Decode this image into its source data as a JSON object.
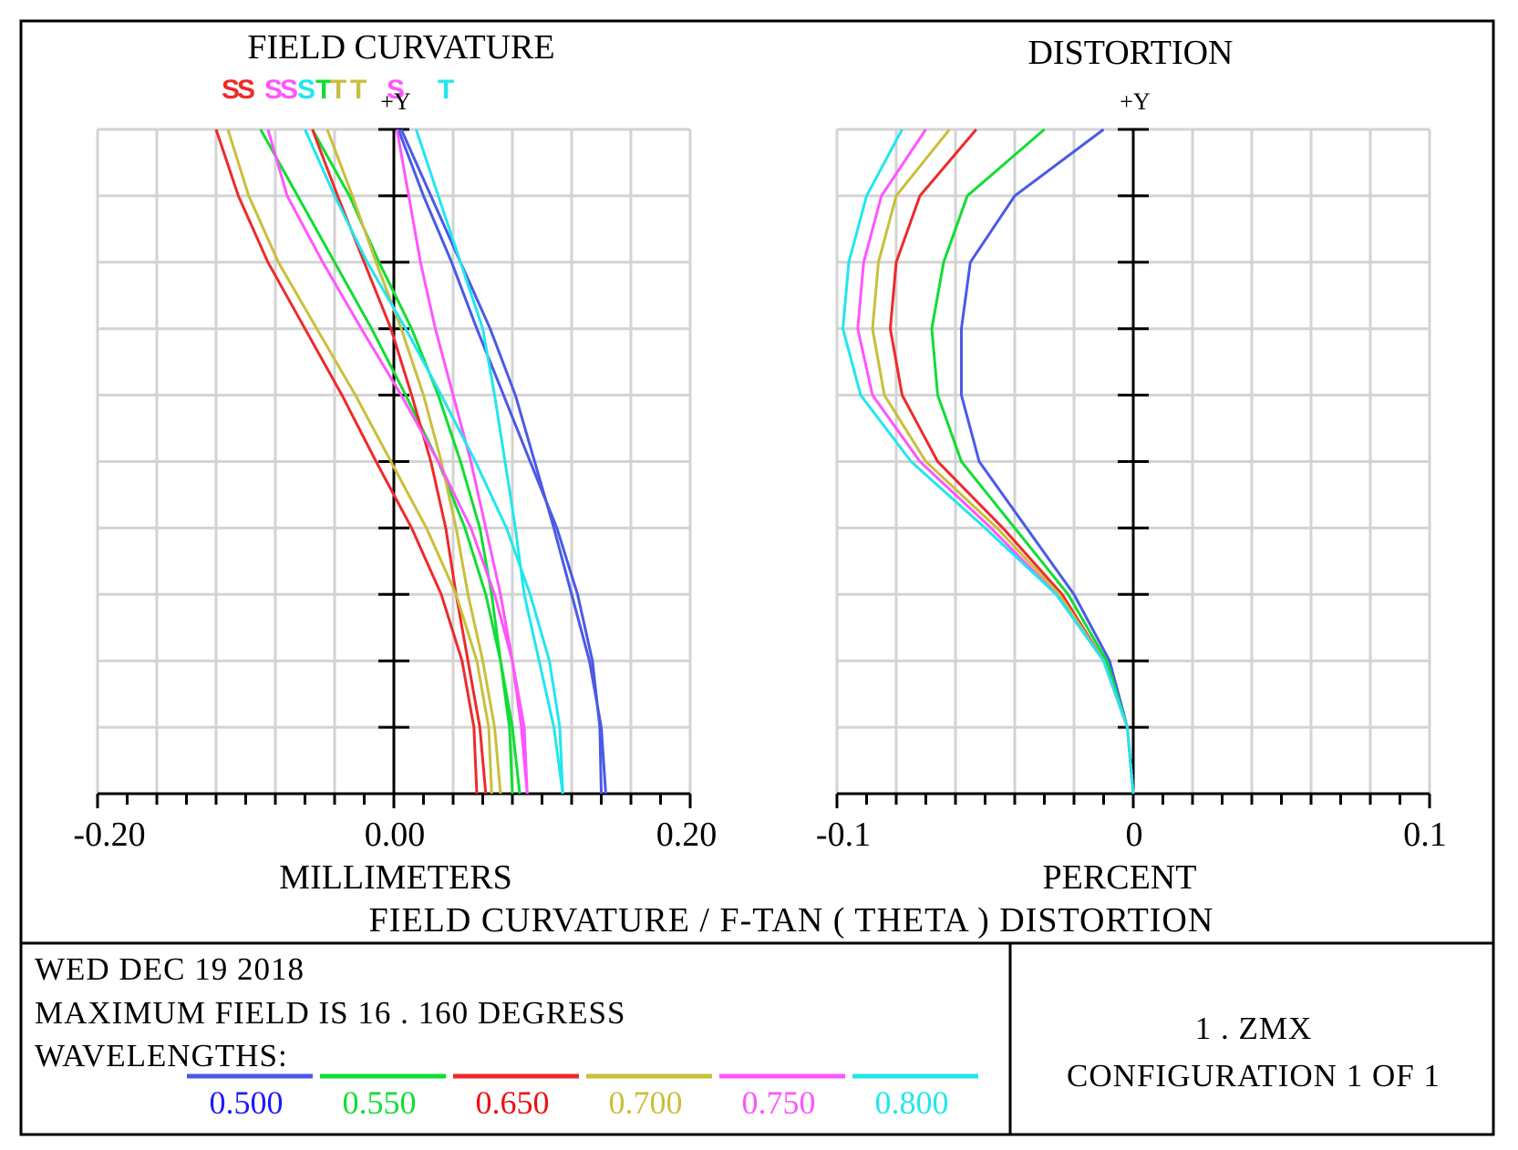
{
  "colors": {
    "w500": "#4a5ae6",
    "w550": "#11dd33",
    "w650": "#ee2a2a",
    "w700": "#c9bf3c",
    "w750": "#ff55ff",
    "w800": "#22e6ee",
    "grid": "#d3d3d3",
    "axis": "#000000"
  },
  "chart_data": [
    {
      "type": "line",
      "title": "FIELD CURVATURE",
      "legend_glyphs": [
        "S",
        "S",
        "S",
        "S",
        "S",
        "T",
        "T",
        "T",
        "S",
        "T"
      ],
      "axis_marker": "+Y",
      "xlabel": "MILLIMETERS",
      "xlim": [
        -0.2,
        0.2
      ],
      "ylim": [
        0,
        1
      ],
      "x_tick_labels": [
        "-0.20",
        "0.00",
        "0.20"
      ],
      "series": [
        {
          "name": "0.500 S",
          "color_key": "w500",
          "y": [
            0,
            0.1,
            0.2,
            0.3,
            0.4,
            0.5,
            0.6,
            0.7,
            0.8,
            0.9,
            1.0
          ],
          "x": [
            0.14,
            0.139,
            0.134,
            0.124,
            0.11,
            0.092,
            0.074,
            0.056,
            0.039,
            0.02,
            0.003
          ]
        },
        {
          "name": "0.500 T",
          "color_key": "w500",
          "y": [
            0,
            0.1,
            0.2,
            0.3,
            0.4,
            0.5,
            0.6,
            0.7,
            0.8,
            0.9,
            1.0
          ],
          "x": [
            0.143,
            0.14,
            0.132,
            0.12,
            0.108,
            0.095,
            0.082,
            0.065,
            0.045,
            0.025,
            0.005
          ]
        },
        {
          "name": "0.550 S",
          "color_key": "w550",
          "y": [
            0,
            0.1,
            0.2,
            0.3,
            0.4,
            0.5,
            0.6,
            0.7,
            0.8,
            0.9,
            1.0
          ],
          "x": [
            0.08,
            0.078,
            0.072,
            0.062,
            0.048,
            0.03,
            0.008,
            -0.015,
            -0.04,
            -0.065,
            -0.09
          ]
        },
        {
          "name": "0.550 T",
          "color_key": "w550",
          "y": [
            0,
            0.1,
            0.2,
            0.3,
            0.4,
            0.5,
            0.6,
            0.7,
            0.8,
            0.9,
            1.0
          ],
          "x": [
            0.085,
            0.08,
            0.072,
            0.066,
            0.058,
            0.045,
            0.03,
            0.012,
            -0.01,
            -0.03,
            -0.055
          ]
        },
        {
          "name": "0.650 S",
          "color_key": "w650",
          "y": [
            0,
            0.1,
            0.2,
            0.3,
            0.4,
            0.5,
            0.6,
            0.7,
            0.8,
            0.9,
            1.0
          ],
          "x": [
            0.056,
            0.054,
            0.046,
            0.032,
            0.012,
            -0.012,
            -0.035,
            -0.06,
            -0.085,
            -0.105,
            -0.12
          ]
        },
        {
          "name": "0.650 T",
          "color_key": "w650",
          "y": [
            0,
            0.1,
            0.2,
            0.3,
            0.4,
            0.5,
            0.6,
            0.7,
            0.8,
            0.9,
            1.0
          ],
          "x": [
            0.062,
            0.058,
            0.05,
            0.042,
            0.035,
            0.025,
            0.012,
            -0.002,
            -0.02,
            -0.038,
            -0.055
          ]
        },
        {
          "name": "0.700 S",
          "color_key": "w700",
          "y": [
            0,
            0.1,
            0.2,
            0.3,
            0.4,
            0.5,
            0.6,
            0.7,
            0.8,
            0.9,
            1.0
          ],
          "x": [
            0.066,
            0.064,
            0.056,
            0.042,
            0.022,
            -0.002,
            -0.026,
            -0.052,
            -0.078,
            -0.098,
            -0.112
          ]
        },
        {
          "name": "0.700 T",
          "color_key": "w700",
          "y": [
            0,
            0.1,
            0.2,
            0.3,
            0.4,
            0.5,
            0.6,
            0.7,
            0.8,
            0.9,
            1.0
          ],
          "x": [
            0.072,
            0.068,
            0.06,
            0.05,
            0.042,
            0.032,
            0.02,
            0.005,
            -0.012,
            -0.028,
            -0.045
          ]
        },
        {
          "name": "0.750 S",
          "color_key": "w750",
          "y": [
            0,
            0.1,
            0.2,
            0.3,
            0.4,
            0.5,
            0.6,
            0.7,
            0.8,
            0.9,
            1.0
          ],
          "x": [
            0.09,
            0.088,
            0.08,
            0.068,
            0.052,
            0.03,
            0.005,
            -0.022,
            -0.048,
            -0.072,
            -0.085
          ]
        },
        {
          "name": "0.750 T",
          "color_key": "w750",
          "y": [
            0,
            0.1,
            0.2,
            0.3,
            0.4,
            0.5,
            0.6,
            0.7,
            0.8,
            0.9,
            1.0
          ],
          "x": [
            0.09,
            0.086,
            0.08,
            0.072,
            0.062,
            0.052,
            0.04,
            0.028,
            0.018,
            0.01,
            0.002
          ]
        },
        {
          "name": "0.800 S",
          "color_key": "w800",
          "y": [
            0,
            0.1,
            0.2,
            0.3,
            0.4,
            0.5,
            0.6,
            0.7,
            0.8,
            0.9,
            1.0
          ],
          "x": [
            0.114,
            0.112,
            0.105,
            0.092,
            0.076,
            0.055,
            0.032,
            0.008,
            -0.018,
            -0.04,
            -0.06
          ]
        },
        {
          "name": "0.800 T",
          "color_key": "w800",
          "y": [
            0,
            0.1,
            0.2,
            0.3,
            0.4,
            0.5,
            0.6,
            0.7,
            0.8,
            0.9,
            1.0
          ],
          "x": [
            0.114,
            0.108,
            0.098,
            0.088,
            0.082,
            0.075,
            0.068,
            0.06,
            0.045,
            0.03,
            0.015
          ]
        }
      ]
    },
    {
      "type": "line",
      "title": "DISTORTION",
      "axis_marker": "+Y",
      "xlabel": "PERCENT",
      "xlim": [
        -0.1,
        0.1
      ],
      "ylim": [
        0,
        1
      ],
      "x_tick_labels": [
        "-0.1",
        "0",
        "0.1"
      ],
      "series": [
        {
          "name": "0.500",
          "color_key": "w500",
          "y": [
            0,
            0.1,
            0.2,
            0.3,
            0.4,
            0.5,
            0.6,
            0.7,
            0.8,
            0.9,
            1.0
          ],
          "x": [
            0.0,
            -0.002,
            -0.008,
            -0.02,
            -0.036,
            -0.052,
            -0.058,
            -0.058,
            -0.055,
            -0.04,
            -0.01
          ]
        },
        {
          "name": "0.550",
          "color_key": "w550",
          "y": [
            0,
            0.1,
            0.2,
            0.3,
            0.4,
            0.5,
            0.6,
            0.7,
            0.8,
            0.9,
            1.0
          ],
          "x": [
            0.0,
            -0.002,
            -0.009,
            -0.022,
            -0.04,
            -0.058,
            -0.066,
            -0.068,
            -0.064,
            -0.056,
            -0.03
          ]
        },
        {
          "name": "0.650",
          "color_key": "w650",
          "y": [
            0,
            0.1,
            0.2,
            0.3,
            0.4,
            0.5,
            0.6,
            0.7,
            0.8,
            0.9,
            1.0
          ],
          "x": [
            0.0,
            -0.002,
            -0.01,
            -0.024,
            -0.044,
            -0.066,
            -0.078,
            -0.082,
            -0.08,
            -0.072,
            -0.053
          ]
        },
        {
          "name": "0.700",
          "color_key": "w700",
          "y": [
            0,
            0.1,
            0.2,
            0.3,
            0.4,
            0.5,
            0.6,
            0.7,
            0.8,
            0.9,
            1.0
          ],
          "x": [
            0.0,
            -0.002,
            -0.01,
            -0.025,
            -0.046,
            -0.07,
            -0.084,
            -0.088,
            -0.086,
            -0.08,
            -0.062
          ]
        },
        {
          "name": "0.750",
          "color_key": "w750",
          "y": [
            0,
            0.1,
            0.2,
            0.3,
            0.4,
            0.5,
            0.6,
            0.7,
            0.8,
            0.9,
            1.0
          ],
          "x": [
            0.0,
            -0.002,
            -0.01,
            -0.026,
            -0.048,
            -0.072,
            -0.088,
            -0.093,
            -0.091,
            -0.085,
            -0.07
          ]
        },
        {
          "name": "0.800",
          "color_key": "w800",
          "y": [
            0,
            0.1,
            0.2,
            0.3,
            0.4,
            0.5,
            0.6,
            0.7,
            0.8,
            0.9,
            1.0
          ],
          "x": [
            0.0,
            -0.002,
            -0.01,
            -0.026,
            -0.05,
            -0.075,
            -0.092,
            -0.098,
            -0.096,
            -0.09,
            -0.078
          ]
        }
      ]
    }
  ],
  "header": {
    "fc_title": "FIELD CURVATURE",
    "dist_title": "DISTORTION",
    "marker_left": "+Y",
    "marker_right": "+Y"
  },
  "axes": {
    "fc_xlabel": "MILLIMETERS",
    "dist_xlabel": "PERCENT",
    "fc_ticks": [
      "-0.20",
      "0.00",
      "0.20"
    ],
    "dist_ticks": [
      "-0.1",
      "0",
      "0.1"
    ]
  },
  "footer": {
    "caption": "FIELD CURVATURE / F-TAN ( THETA ) DISTORTION",
    "date": "WED DEC 19 2018",
    "max_field": "MAXIMUM FIELD IS 16 . 160 DEGRESS",
    "wavelengths_label": "WAVELENGTHS:",
    "wavelengths": [
      "0.500",
      "0.550",
      "0.650",
      "0.700",
      "0.750",
      "0.800"
    ],
    "file": "1 . ZMX",
    "config": "CONFIGURATION 1 OF 1"
  }
}
